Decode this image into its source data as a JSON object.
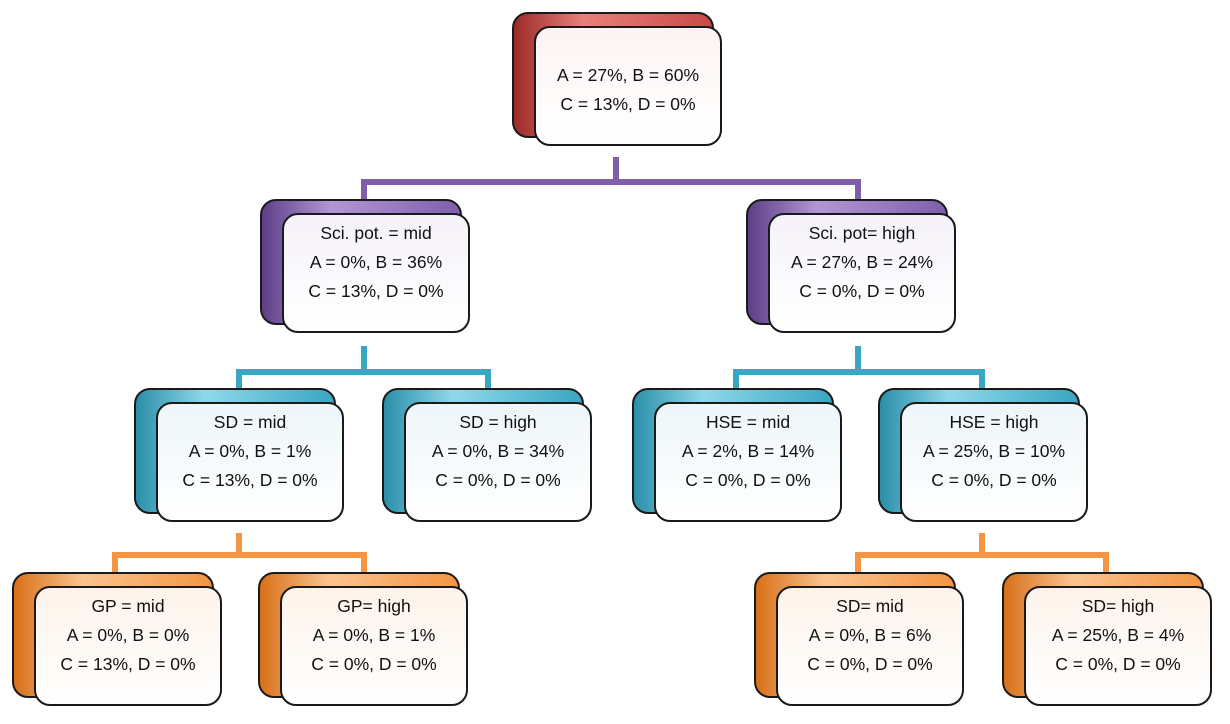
{
  "nodes": {
    "root": {
      "lines": [
        "",
        "A = 27%, B = 60%",
        "C = 13%, D = 0%"
      ]
    },
    "sci_mid": {
      "lines": [
        "Sci. pot. = mid",
        "A = 0%, B = 36%",
        "C = 13%, D = 0%"
      ]
    },
    "sci_high": {
      "lines": [
        "Sci. pot= high",
        "A = 27%, B = 24%",
        "C = 0%, D = 0%"
      ]
    },
    "sd_mid": {
      "lines": [
        "SD = mid",
        "A = 0%, B = 1%",
        "C = 13%, D = 0%"
      ]
    },
    "sd_high": {
      "lines": [
        "SD = high",
        "A = 0%, B = 34%",
        "C = 0%, D = 0%"
      ]
    },
    "hse_mid": {
      "lines": [
        "HSE = mid",
        "A = 2%, B = 14%",
        "C = 0%, D = 0%"
      ]
    },
    "hse_high": {
      "lines": [
        "HSE = high",
        "A = 25%, B = 10%",
        "C = 0%, D = 0%"
      ]
    },
    "gp_mid": {
      "lines": [
        "GP = mid",
        "A = 0%, B = 0%",
        "C = 13%, D = 0%"
      ]
    },
    "gp_high": {
      "lines": [
        "GP= high",
        "A = 0%, B = 1%",
        "C = 0%, D = 0%"
      ]
    },
    "sd2_mid": {
      "lines": [
        "SD= mid",
        "A = 0%, B = 6%",
        "C = 0%, D = 0%"
      ]
    },
    "sd2_high": {
      "lines": [
        "SD= high",
        "A = 25%, B = 4%",
        "C = 0%, D = 0%"
      ]
    }
  },
  "colors": {
    "level1": "#c84a47",
    "level2": "#7f5fab",
    "level3": "#3aa6c2",
    "level4": "#f39544"
  }
}
